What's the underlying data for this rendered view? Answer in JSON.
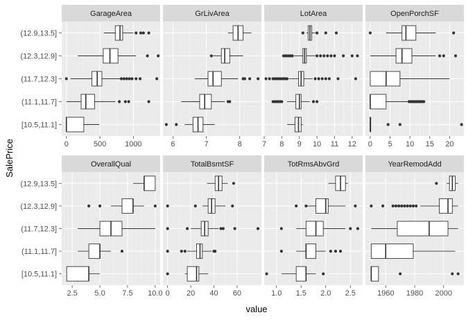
{
  "chart_data": {
    "type": "boxplot",
    "layout": "facet_wrap",
    "facet_scales": "free_x",
    "xlabel": "value",
    "ylabel": "SalePrice",
    "categories": [
      "[10.5,11.1]",
      "(11.1,11.7]",
      "(11.7,12.3]",
      "(12.3,12.9]",
      "(12.9,13.5]"
    ],
    "panels": [
      {
        "name": "GarageArea",
        "xlim": [
          -70,
          1400
        ],
        "xticks": [
          0,
          500,
          1000
        ],
        "xtick_labels": [
          "0",
          "500",
          "1000"
        ],
        "boxes": [
          {
            "category": "[10.5,11.1]",
            "whisker_low": 0,
            "q1": 0,
            "median": 0,
            "q3": 260,
            "whisker_high": 490,
            "outliers": []
          },
          {
            "category": "(11.1,11.7]",
            "whisker_low": 0,
            "q1": 220,
            "median": 290,
            "q3": 420,
            "whisker_high": 730,
            "outliers": [
              790,
              880,
              930,
              1230
            ]
          },
          {
            "category": "(11.7,12.3]",
            "whisker_low": 60,
            "q1": 380,
            "median": 460,
            "q3": 530,
            "whisker_high": 800,
            "outliers": [
              0,
              820,
              860,
              900,
              940,
              980,
              1040,
              1100,
              1350
            ]
          },
          {
            "category": "(12.3,12.9]",
            "whisker_low": 170,
            "q1": 550,
            "median": 650,
            "q3": 770,
            "whisker_high": 1040,
            "outliers": [
              1210,
              1370
            ]
          },
          {
            "category": "(12.9,13.5]",
            "whisker_low": 560,
            "q1": 730,
            "median": 800,
            "q3": 840,
            "whisker_high": 1000,
            "outliers": [
              1040,
              1110,
              1150,
              1230
            ]
          }
        ]
      },
      {
        "name": "GrLivArea",
        "xlim": [
          5.7,
          8.65
        ],
        "xticks": [
          6,
          7,
          8
        ],
        "xtick_labels": [
          "6",
          "7",
          "8"
        ],
        "boxes": [
          {
            "category": "[10.5,11.1]",
            "whisker_low": 6.35,
            "q1": 6.6,
            "median": 6.75,
            "q3": 6.9,
            "whisker_high": 7.25,
            "outliers": [
              5.8,
              6.1
            ]
          },
          {
            "category": "(11.1,11.7]",
            "whisker_low": 6.25,
            "q1": 6.8,
            "median": 6.95,
            "q3": 7.15,
            "whisker_high": 7.55,
            "outliers": [
              7.65,
              7.7
            ]
          },
          {
            "category": "(11.7,12.3]",
            "whisker_low": 6.65,
            "q1": 7.05,
            "median": 7.2,
            "q3": 7.45,
            "whisker_high": 7.95,
            "outliers": [
              8.1,
              8.15,
              8.3,
              8.55
            ]
          },
          {
            "category": "(12.3,12.9]",
            "whisker_low": 7.2,
            "q1": 7.45,
            "median": 7.55,
            "q3": 7.7,
            "whisker_high": 8.1,
            "outliers": [
              7.15
            ]
          },
          {
            "category": "(12.9,13.5]",
            "whisker_low": 7.65,
            "q1": 7.8,
            "median": 7.95,
            "q3": 8.1,
            "whisker_high": 8.35,
            "outliers": []
          }
        ]
      },
      {
        "name": "LotArea",
        "xlim": [
          7.0,
          12.6
        ],
        "xticks": [
          7,
          8,
          9,
          10,
          11,
          12
        ],
        "xtick_labels": [
          "7",
          "8",
          "9",
          "10",
          "11",
          "12"
        ],
        "boxes": [
          {
            "category": "[10.5,11.1]",
            "whisker_low": 8.3,
            "q1": 8.75,
            "median": 8.95,
            "q3": 9.1,
            "whisker_high": 9.2,
            "outliers": []
          },
          {
            "category": "(11.1,11.7]",
            "whisker_low": 8.3,
            "q1": 8.8,
            "median": 9.0,
            "q3": 9.1,
            "whisker_high": 9.6,
            "outliers": [
              7.5,
              7.6,
              7.7,
              7.8,
              7.9,
              8.0,
              9.8,
              10.0
            ]
          },
          {
            "category": "(11.7,12.3]",
            "whisker_low": 8.4,
            "q1": 8.95,
            "median": 9.1,
            "q3": 9.25,
            "whisker_high": 9.75,
            "outliers": [
              7.1,
              7.3,
              7.5,
              7.6,
              7.7,
              7.8,
              7.9,
              8.0,
              8.1,
              8.2,
              8.3,
              9.9,
              10.1,
              10.3,
              10.5,
              10.7,
              11.2,
              12.2
            ]
          },
          {
            "category": "(12.3,12.9]",
            "whisker_low": 8.7,
            "q1": 9.2,
            "median": 9.3,
            "q3": 9.4,
            "whisker_high": 9.9,
            "outliers": [
              8.1,
              8.2,
              8.3,
              8.4,
              8.5,
              8.6,
              10.0,
              10.2,
              10.4,
              10.6,
              10.8,
              11.0,
              11.5,
              12.0,
              12.3
            ]
          },
          {
            "category": "(12.9,13.5]",
            "whisker_low": 9.4,
            "q1": 9.5,
            "median": 9.6,
            "q3": 9.7,
            "whisker_high": 9.9,
            "outliers": [
              9.2,
              10.0,
              10.5,
              11.1
            ]
          }
        ]
      },
      {
        "name": "OpenPorchSF",
        "xlim": [
          -1.2,
          23.6
        ],
        "xticks": [
          0,
          5,
          10,
          15,
          20
        ],
        "xtick_labels": [
          "0",
          "5",
          "10",
          "15",
          "20"
        ],
        "boxes": [
          {
            "category": "[10.5,11.1]",
            "whisker_low": 0,
            "q1": 0,
            "median": 0,
            "q3": 0,
            "whisker_high": 0,
            "outliers": [
              4.5,
              7.5,
              23.0
            ]
          },
          {
            "category": "(11.1,11.7]",
            "whisker_low": 0,
            "q1": 0,
            "median": 0,
            "q3": 4.0,
            "whisker_high": 9.5,
            "outliers": [
              9.8,
              10.1,
              10.4,
              10.7,
              11.0,
              11.3,
              11.6,
              11.9,
              12.2,
              12.5,
              12.8,
              13.1,
              13.5
            ]
          },
          {
            "category": "(11.7,12.3]",
            "whisker_low": 0,
            "q1": 0,
            "median": 4.0,
            "q3": 7.5,
            "whisker_high": 20.0,
            "outliers": []
          },
          {
            "category": "(12.3,12.9]",
            "whisker_low": 0,
            "q1": 6.5,
            "median": 8.0,
            "q3": 10.5,
            "whisker_high": 16.5,
            "outliers": [
              17.5,
              18.5,
              21.5
            ]
          },
          {
            "category": "(12.9,13.5]",
            "whisker_low": 4.0,
            "q1": 8.0,
            "median": 9.0,
            "q3": 11.5,
            "whisker_high": 16.5,
            "outliers": [
              0,
              21.0
            ]
          }
        ]
      },
      {
        "name": "OverallQual",
        "xlim": [
          1.55,
          10.45
        ],
        "xticks": [
          2.5,
          5.0,
          7.5,
          10.0
        ],
        "xtick_labels": [
          "2.5",
          "5.0",
          "7.5",
          "10.0"
        ],
        "boxes": [
          {
            "category": "[10.5,11.1]",
            "whisker_low": 2,
            "q1": 2,
            "median": 4,
            "q3": 4,
            "whisker_high": 5,
            "outliers": []
          },
          {
            "category": "(11.1,11.7]",
            "whisker_low": 3,
            "q1": 4,
            "median": 5,
            "q3": 5,
            "whisker_high": 6,
            "outliers": [
              7
            ]
          },
          {
            "category": "(11.7,12.3]",
            "whisker_low": 3,
            "q1": 5,
            "median": 6,
            "q3": 7,
            "whisker_high": 10,
            "outliers": []
          },
          {
            "category": "(12.3,12.9]",
            "whisker_low": 6,
            "q1": 7,
            "median": 8,
            "q3": 8,
            "whisker_high": 9,
            "outliers": [
              4,
              5,
              10
            ]
          },
          {
            "category": "(12.9,13.5]",
            "whisker_low": 8,
            "q1": 9,
            "median": 9,
            "q3": 10,
            "whisker_high": 10,
            "outliers": []
          }
        ]
      },
      {
        "name": "TotalBsmtSF",
        "xlim": [
          -4,
          81
        ],
        "xticks": [
          0,
          20,
          40,
          60
        ],
        "xtick_labels": [
          "0",
          "20",
          "40",
          "60"
        ],
        "boxes": [
          {
            "category": "[10.5,11.1]",
            "whisker_low": 15,
            "q1": 17,
            "median": 25,
            "q3": 27,
            "whisker_high": 35,
            "outliers": [
              0
            ]
          },
          {
            "category": "(11.1,11.7]",
            "whisker_low": 17,
            "q1": 25,
            "median": 28,
            "q3": 30,
            "whisker_high": 38,
            "outliers": [
              0,
              12,
              15,
              40,
              41
            ]
          },
          {
            "category": "(11.7,12.3]",
            "whisker_low": 20,
            "q1": 29,
            "median": 32,
            "q3": 35,
            "whisker_high": 44,
            "outliers": [
              0,
              17,
              46,
              48,
              58,
              78
            ]
          },
          {
            "category": "(12.3,12.9]",
            "whisker_low": 30,
            "q1": 35,
            "median": 38,
            "q3": 41,
            "whisker_high": 50,
            "outliers": [
              0,
              24,
              56
            ]
          },
          {
            "category": "(12.9,13.5]",
            "whisker_low": 34,
            "q1": 41,
            "median": 44,
            "q3": 47,
            "whisker_high": 52,
            "outliers": [
              57
            ]
          }
        ]
      },
      {
        "name": "TotRmsAbvGrd",
        "xlim": [
          0.75,
          2.75
        ],
        "xticks": [
          1.0,
          1.5,
          2.0,
          2.5
        ],
        "xtick_labels": [
          "1.0",
          "1.5",
          "2.0",
          "2.5"
        ],
        "boxes": [
          {
            "category": "[10.5,11.1]",
            "whisker_low": 1.1,
            "q1": 1.4,
            "median": 1.6,
            "q3": 1.6,
            "whisker_high": 1.8,
            "outliers": [
              0.8,
              1.95
            ]
          },
          {
            "category": "(11.1,11.7]",
            "whisker_low": 1.4,
            "q1": 1.6,
            "median": 1.6,
            "q3": 1.8,
            "whisker_high": 2.0,
            "outliers": [
              1.1,
              2.1,
              2.2,
              2.3
            ]
          },
          {
            "category": "(11.7,12.3]",
            "whisker_low": 1.4,
            "q1": 1.6,
            "median": 1.8,
            "q3": 1.95,
            "whisker_high": 2.4,
            "outliers": [
              1.1,
              2.5,
              2.65
            ]
          },
          {
            "category": "(12.3,12.9]",
            "whisker_low": 1.6,
            "q1": 1.8,
            "median": 2.0,
            "q3": 2.05,
            "whisker_high": 2.4,
            "outliers": [
              1.4,
              1.6,
              2.6
            ]
          },
          {
            "category": "(12.9,13.5]",
            "whisker_low": 2.05,
            "q1": 2.2,
            "median": 2.3,
            "q3": 2.4,
            "whisker_high": 2.45,
            "outliers": []
          }
        ]
      },
      {
        "name": "YearRemodAdd",
        "xlim": [
          1946,
          2014
        ],
        "xticks": [
          1960,
          1980,
          2000
        ],
        "xtick_labels": [
          "1960",
          "1980",
          "2000"
        ],
        "boxes": [
          {
            "category": "[10.5,11.1]",
            "whisker_low": 1950,
            "q1": 1950,
            "median": 1950,
            "q3": 1955,
            "whisker_high": 1955,
            "outliers": [
              1970,
              2006,
              2010
            ]
          },
          {
            "category": "(11.1,11.7]",
            "whisker_low": 1950,
            "q1": 1950,
            "median": 1960,
            "q3": 1979,
            "whisker_high": 2008,
            "outliers": []
          },
          {
            "category": "(11.7,12.3]",
            "whisker_low": 1950,
            "q1": 1968,
            "median": 1990,
            "q3": 2003,
            "whisker_high": 2010,
            "outliers": []
          },
          {
            "category": "(12.3,12.9]",
            "whisker_low": 1984,
            "q1": 1997,
            "median": 2003,
            "q3": 2006,
            "whisker_high": 2010,
            "outliers": [
              1950,
              1958,
              1965,
              1967,
              1969,
              1971,
              1973,
              1975,
              1977,
              1979,
              1981
            ]
          },
          {
            "category": "(12.9,13.5]",
            "whisker_low": 2002,
            "q1": 2004,
            "median": 2006,
            "q3": 2008,
            "whisker_high": 2010,
            "outliers": [
              1995
            ]
          }
        ]
      }
    ]
  }
}
